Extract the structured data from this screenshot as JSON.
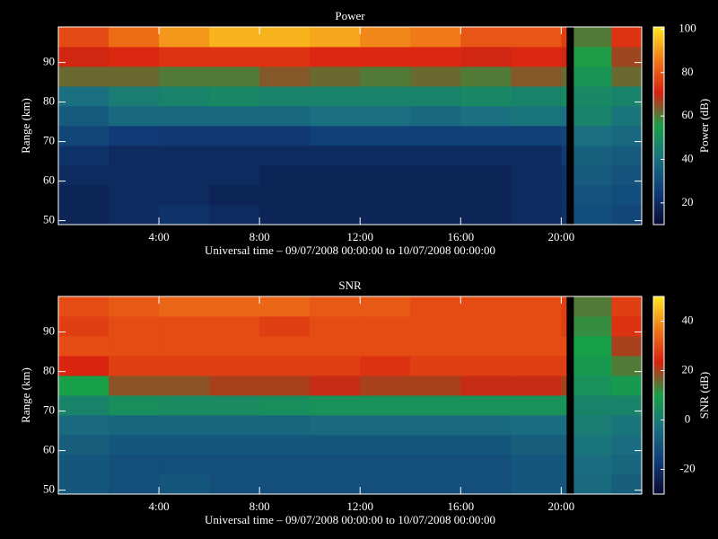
{
  "chart_data": [
    {
      "type": "heatmap",
      "title": "Power",
      "xlabel": "Universal time – 09/07/2008 00:00:00 to 10/07/2008 00:00:00",
      "ylabel": "Range (km)",
      "zlabel": "Power (dB)",
      "x_edges": [
        0,
        2,
        4,
        6,
        8,
        10,
        12,
        14,
        16,
        18,
        20,
        20.2,
        20.5,
        22,
        23.2
      ],
      "y_edges": [
        49,
        54,
        59,
        64,
        69,
        74,
        79,
        84,
        89,
        94,
        99
      ],
      "values": [
        [
          18,
          20,
          22,
          20,
          18,
          18,
          18,
          18,
          18,
          20,
          22,
          null,
          30,
          28
        ],
        [
          18,
          20,
          20,
          18,
          18,
          18,
          18,
          18,
          18,
          20,
          22,
          null,
          32,
          30
        ],
        [
          20,
          20,
          20,
          20,
          18,
          18,
          18,
          18,
          18,
          20,
          22,
          null,
          34,
          32
        ],
        [
          22,
          20,
          20,
          20,
          20,
          20,
          20,
          20,
          20,
          20,
          24,
          null,
          36,
          34
        ],
        [
          28,
          25,
          24,
          24,
          24,
          26,
          26,
          26,
          26,
          26,
          28,
          null,
          40,
          38
        ],
        [
          34,
          38,
          38,
          38,
          38,
          40,
          40,
          38,
          40,
          42,
          40,
          null,
          46,
          42
        ],
        [
          40,
          44,
          46,
          48,
          46,
          46,
          46,
          46,
          48,
          46,
          48,
          null,
          48,
          46
        ],
        [
          62,
          62,
          60,
          60,
          64,
          62,
          60,
          62,
          60,
          64,
          62,
          null,
          52,
          62
        ],
        [
          70,
          72,
          74,
          74,
          74,
          72,
          72,
          72,
          70,
          72,
          70,
          null,
          56,
          66
        ],
        [
          78,
          84,
          90,
          94,
          94,
          92,
          88,
          86,
          80,
          80,
          76,
          null,
          60,
          74
        ]
      ],
      "xlim": [
        0,
        23.2
      ],
      "xticks": [
        {
          "value": 4,
          "label": "4:00"
        },
        {
          "value": 8,
          "label": "8:00"
        },
        {
          "value": 12,
          "label": "12:00"
        },
        {
          "value": 16,
          "label": "16:00"
        },
        {
          "value": 20,
          "label": "20:00"
        }
      ],
      "ylim": [
        49,
        99
      ],
      "yticks": [
        50,
        60,
        70,
        80,
        90
      ],
      "zlim": [
        10,
        101
      ],
      "zticks": [
        20,
        40,
        60,
        80,
        100
      ],
      "colorscale": [
        "#0a0a30",
        "#103c78",
        "#1a7080",
        "#18a048",
        "#d82010",
        "#f07818",
        "#ffe820"
      ]
    },
    {
      "type": "heatmap",
      "title": "SNR",
      "xlabel": "Universal time – 09/07/2008 00:00:00 to 10/07/2008 00:00:00",
      "ylabel": "Range (km)",
      "zlabel": "SNR (dB)",
      "x_edges": [
        0,
        2,
        4,
        6,
        8,
        10,
        12,
        14,
        16,
        18,
        20,
        20.2,
        20.5,
        22,
        23.2
      ],
      "y_edges": [
        49,
        54,
        59,
        64,
        69,
        74,
        79,
        84,
        89,
        94,
        99
      ],
      "values": [
        [
          -10,
          -12,
          -10,
          -12,
          -12,
          -12,
          -12,
          -12,
          -12,
          -10,
          -10,
          null,
          -5,
          -8
        ],
        [
          -10,
          -12,
          -12,
          -12,
          -12,
          -12,
          -12,
          -12,
          -12,
          -10,
          -10,
          null,
          -4,
          -6
        ],
        [
          -8,
          -10,
          -10,
          -10,
          -10,
          -10,
          -10,
          -10,
          -10,
          -8,
          -8,
          null,
          -2,
          -4
        ],
        [
          -5,
          -6,
          -6,
          -6,
          -6,
          -5,
          -5,
          -5,
          -5,
          -4,
          -4,
          null,
          0,
          -2
        ],
        [
          2,
          5,
          4,
          4,
          5,
          6,
          6,
          6,
          6,
          6,
          6,
          null,
          2,
          2
        ],
        [
          10,
          18,
          18,
          20,
          20,
          22,
          20,
          20,
          22,
          22,
          20,
          null,
          6,
          8
        ],
        [
          24,
          28,
          28,
          28,
          28,
          28,
          26,
          28,
          28,
          28,
          28,
          null,
          8,
          14
        ],
        [
          30,
          30,
          30,
          30,
          30,
          30,
          30,
          30,
          30,
          30,
          30,
          null,
          10,
          20
        ],
        [
          28,
          30,
          30,
          30,
          28,
          30,
          30,
          30,
          30,
          30,
          28,
          null,
          12,
          26
        ],
        [
          30,
          32,
          34,
          34,
          34,
          32,
          32,
          30,
          30,
          30,
          28,
          null,
          14,
          28
        ]
      ],
      "xlim": [
        0,
        23.2
      ],
      "xticks": [
        {
          "value": 4,
          "label": "4:00"
        },
        {
          "value": 8,
          "label": "8:00"
        },
        {
          "value": 12,
          "label": "12:00"
        },
        {
          "value": 16,
          "label": "16:00"
        },
        {
          "value": 20,
          "label": "20:00"
        }
      ],
      "ylim": [
        49,
        99
      ],
      "yticks": [
        50,
        60,
        70,
        80,
        90
      ],
      "zlim": [
        -30,
        50
      ],
      "zticks": [
        -20,
        0,
        20,
        40
      ],
      "colorscale": [
        "#0a0a30",
        "#103c78",
        "#1a7080",
        "#18a048",
        "#d82010",
        "#f07818",
        "#ffe820"
      ]
    }
  ]
}
